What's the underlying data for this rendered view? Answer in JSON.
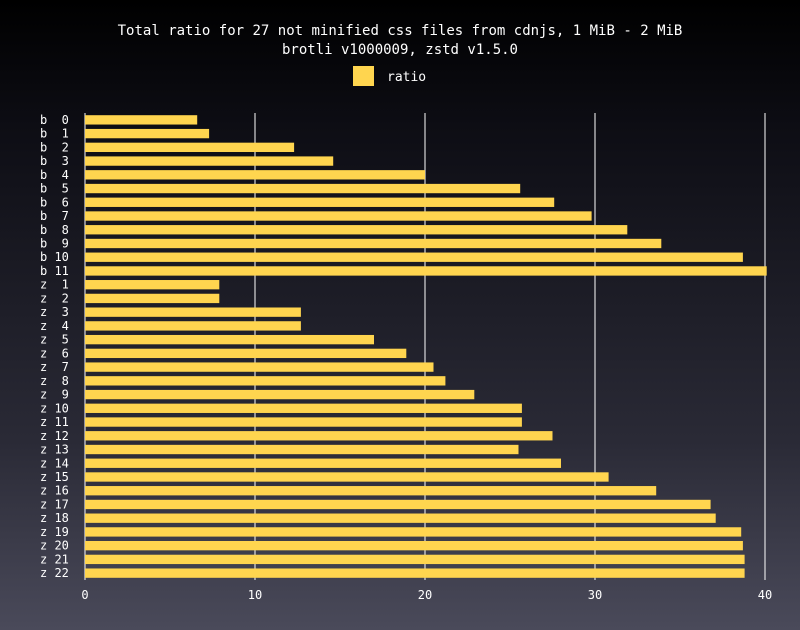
{
  "chart_data": {
    "type": "bar",
    "orientation": "horizontal",
    "title": "Total ratio for 27 not minified css files from cdnjs, 1 MiB - 2 MiB",
    "subtitle": "brotli v1000009, zstd v1.5.0",
    "legend": {
      "placement": "top-center",
      "entries": [
        "ratio"
      ]
    },
    "bar_color": "#ffd54f",
    "grid_color": "#ffffff",
    "xlim": [
      0,
      40
    ],
    "x_ticks": [
      0,
      10,
      20,
      30,
      40
    ],
    "grid": true,
    "categories": [
      "b  0",
      "b  1",
      "b  2",
      "b  3",
      "b  4",
      "b  5",
      "b  6",
      "b  7",
      "b  8",
      "b  9",
      "b 10",
      "b 11",
      "z  1",
      "z  2",
      "z  3",
      "z  4",
      "z  5",
      "z  6",
      "z  7",
      "z  8",
      "z  9",
      "z 10",
      "z 11",
      "z 12",
      "z 13",
      "z 14",
      "z 15",
      "z 16",
      "z 17",
      "z 18",
      "z 19",
      "z 20",
      "z 21",
      "z 22"
    ],
    "series": [
      {
        "name": "ratio",
        "values": [
          6.6,
          7.3,
          12.3,
          14.6,
          20.0,
          25.6,
          27.6,
          29.8,
          31.9,
          33.9,
          38.7,
          40.1,
          7.9,
          7.9,
          12.7,
          12.7,
          17.0,
          18.9,
          20.5,
          21.2,
          22.9,
          25.7,
          25.7,
          27.5,
          25.5,
          28.0,
          30.8,
          33.6,
          36.8,
          37.1,
          38.6,
          38.7,
          38.8,
          38.8
        ]
      }
    ]
  }
}
